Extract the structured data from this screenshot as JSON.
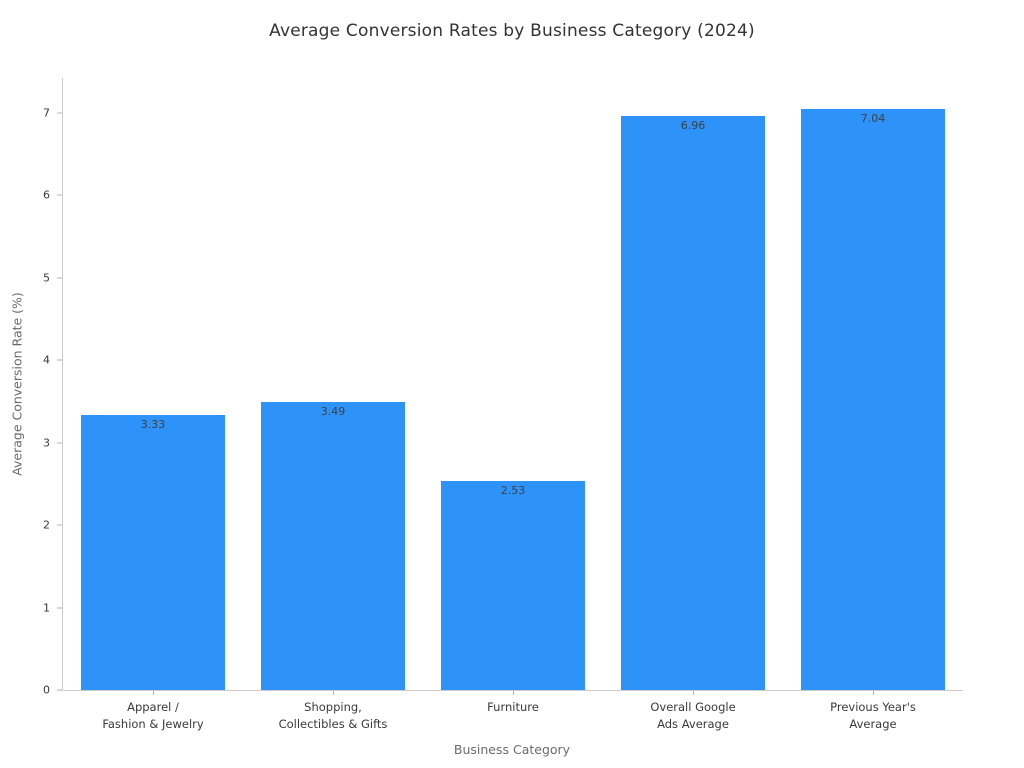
{
  "chart_data": {
    "type": "bar",
    "title": "Average Conversion Rates by Business Category (2024)",
    "xlabel": "Business Category",
    "ylabel": "Average Conversion Rate (%)",
    "categories": [
      "Apparel /\nFashion & Jewelry",
      "Shopping,\nCollectibles & Gifts",
      "Furniture",
      "Overall Google\nAds Average",
      "Previous Year's\nAverage"
    ],
    "values": [
      3.33,
      3.49,
      2.53,
      6.96,
      7.04
    ],
    "value_labels": [
      "3.33",
      "3.49",
      "2.53",
      "6.96",
      "7.04"
    ],
    "yticks": [
      0,
      1,
      2,
      3,
      4,
      5,
      6,
      7
    ],
    "ylim": [
      0,
      7.42
    ],
    "bar_color": "#2e93f9",
    "background_color": "#ffffff",
    "axis_color": "#cccccc",
    "text_color": "#3a3a3a",
    "muted_text_color": "#6b6b6b",
    "grid": false,
    "legend": false
  }
}
